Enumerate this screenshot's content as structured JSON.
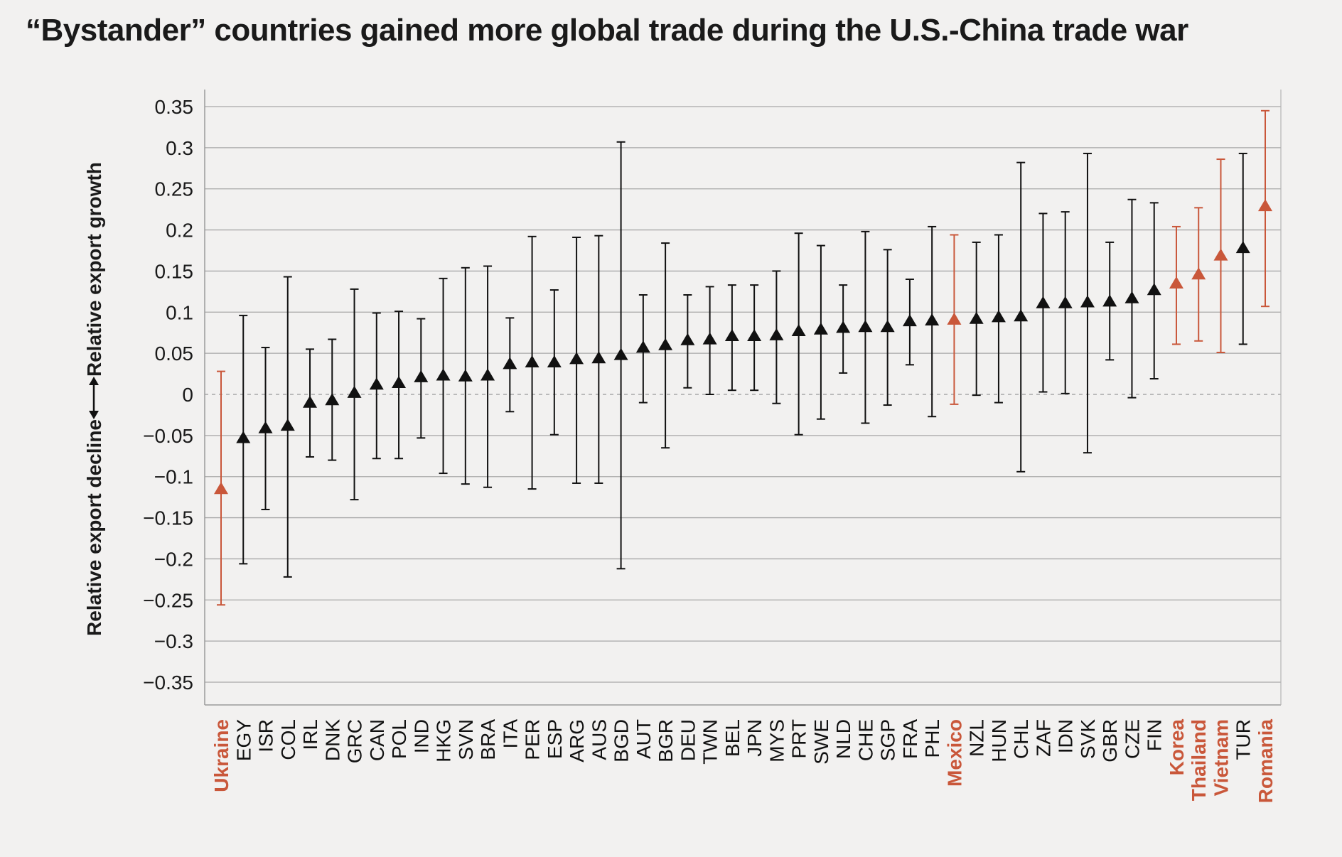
{
  "chart_data": {
    "type": "scatter",
    "title": "“Bystander” countries gained more global trade during the U.S.-China trade war",
    "ylabel_decline": "Relative export decline",
    "ylabel_growth": "Relative export growth",
    "ylim": [
      -0.35,
      0.35
    ],
    "ytick_values": [
      0.35,
      0.3,
      0.25,
      0.2,
      0.15,
      0.1,
      0.05,
      0,
      -0.05,
      -0.1,
      -0.15,
      -0.2,
      -0.25,
      -0.3,
      -0.35
    ],
    "ytick_labels": [
      "0.35",
      "0.3",
      "0.25",
      "0.2",
      "0.15",
      "0.1",
      "0.05",
      "0",
      "−0.05",
      "−0.1",
      "−0.15",
      "−0.2",
      "−0.25",
      "−0.3",
      "−0.35"
    ],
    "grid": true,
    "colors": {
      "default": "#111111",
      "highlight": "#c9573a",
      "grid": "#a8a8a8",
      "background": "#f2f1f0"
    },
    "points": [
      {
        "label": "Ukraine",
        "value": -0.116,
        "low": -0.256,
        "high": 0.028,
        "highlight": true
      },
      {
        "label": "EGY",
        "value": -0.054,
        "low": -0.206,
        "high": 0.096,
        "highlight": false
      },
      {
        "label": "ISR",
        "value": -0.042,
        "low": -0.14,
        "high": 0.057,
        "highlight": false
      },
      {
        "label": "COL",
        "value": -0.039,
        "low": -0.222,
        "high": 0.143,
        "highlight": false
      },
      {
        "label": "IRL",
        "value": -0.011,
        "low": -0.076,
        "high": 0.055,
        "highlight": false
      },
      {
        "label": "DNK",
        "value": -0.008,
        "low": -0.08,
        "high": 0.067,
        "highlight": false
      },
      {
        "label": "GRC",
        "value": 0.001,
        "low": -0.128,
        "high": 0.128,
        "highlight": false
      },
      {
        "label": "CAN",
        "value": 0.011,
        "low": -0.078,
        "high": 0.099,
        "highlight": false
      },
      {
        "label": "POL",
        "value": 0.013,
        "low": -0.078,
        "high": 0.101,
        "highlight": false
      },
      {
        "label": "IND",
        "value": 0.02,
        "low": -0.053,
        "high": 0.092,
        "highlight": false
      },
      {
        "label": "HKG",
        "value": 0.022,
        "low": -0.096,
        "high": 0.141,
        "highlight": false
      },
      {
        "label": "SVN",
        "value": 0.021,
        "low": -0.109,
        "high": 0.154,
        "highlight": false
      },
      {
        "label": "BRA",
        "value": 0.022,
        "low": -0.113,
        "high": 0.156,
        "highlight": false
      },
      {
        "label": "ITA",
        "value": 0.036,
        "low": -0.021,
        "high": 0.093,
        "highlight": false
      },
      {
        "label": "PER",
        "value": 0.038,
        "low": -0.115,
        "high": 0.192,
        "highlight": false
      },
      {
        "label": "ESP",
        "value": 0.038,
        "low": -0.049,
        "high": 0.127,
        "highlight": false
      },
      {
        "label": "ARG",
        "value": 0.042,
        "low": -0.108,
        "high": 0.191,
        "highlight": false
      },
      {
        "label": "AUS",
        "value": 0.043,
        "low": -0.108,
        "high": 0.193,
        "highlight": false
      },
      {
        "label": "BGD",
        "value": 0.047,
        "low": -0.212,
        "high": 0.307,
        "highlight": false
      },
      {
        "label": "AUT",
        "value": 0.056,
        "low": -0.01,
        "high": 0.121,
        "highlight": false
      },
      {
        "label": "BGR",
        "value": 0.059,
        "low": -0.065,
        "high": 0.184,
        "highlight": false
      },
      {
        "label": "DEU",
        "value": 0.065,
        "low": 0.008,
        "high": 0.121,
        "highlight": false
      },
      {
        "label": "TWN",
        "value": 0.066,
        "low": 0.0,
        "high": 0.131,
        "highlight": false
      },
      {
        "label": "BEL",
        "value": 0.07,
        "low": 0.005,
        "high": 0.133,
        "highlight": false
      },
      {
        "label": "JPN",
        "value": 0.07,
        "low": 0.005,
        "high": 0.133,
        "highlight": false
      },
      {
        "label": "MYS",
        "value": 0.071,
        "low": -0.011,
        "high": 0.15,
        "highlight": false
      },
      {
        "label": "PRT",
        "value": 0.076,
        "low": -0.049,
        "high": 0.196,
        "highlight": false
      },
      {
        "label": "SWE",
        "value": 0.078,
        "low": -0.03,
        "high": 0.181,
        "highlight": false
      },
      {
        "label": "NLD",
        "value": 0.08,
        "low": 0.026,
        "high": 0.133,
        "highlight": false
      },
      {
        "label": "CHE",
        "value": 0.081,
        "low": -0.035,
        "high": 0.198,
        "highlight": false
      },
      {
        "label": "SGP",
        "value": 0.081,
        "low": -0.013,
        "high": 0.176,
        "highlight": false
      },
      {
        "label": "FRA",
        "value": 0.088,
        "low": 0.036,
        "high": 0.14,
        "highlight": false
      },
      {
        "label": "PHL",
        "value": 0.089,
        "low": -0.027,
        "high": 0.204,
        "highlight": false
      },
      {
        "label": "Mexico",
        "value": 0.09,
        "low": -0.012,
        "high": 0.194,
        "highlight": true
      },
      {
        "label": "NZL",
        "value": 0.091,
        "low": -0.001,
        "high": 0.185,
        "highlight": false
      },
      {
        "label": "HUN",
        "value": 0.093,
        "low": -0.01,
        "high": 0.194,
        "highlight": false
      },
      {
        "label": "CHL",
        "value": 0.094,
        "low": -0.094,
        "high": 0.282,
        "highlight": false
      },
      {
        "label": "ZAF",
        "value": 0.11,
        "low": 0.003,
        "high": 0.22,
        "highlight": false
      },
      {
        "label": "IDN",
        "value": 0.11,
        "low": 0.001,
        "high": 0.222,
        "highlight": false
      },
      {
        "label": "SVK",
        "value": 0.111,
        "low": -0.071,
        "high": 0.293,
        "highlight": false
      },
      {
        "label": "GBR",
        "value": 0.112,
        "low": 0.042,
        "high": 0.185,
        "highlight": false
      },
      {
        "label": "CZE",
        "value": 0.116,
        "low": -0.004,
        "high": 0.237,
        "highlight": false
      },
      {
        "label": "FIN",
        "value": 0.126,
        "low": 0.019,
        "high": 0.233,
        "highlight": false
      },
      {
        "label": "Korea",
        "value": 0.134,
        "low": 0.061,
        "high": 0.204,
        "highlight": true
      },
      {
        "label": "Thailand",
        "value": 0.145,
        "low": 0.065,
        "high": 0.227,
        "highlight": true
      },
      {
        "label": "Vietnam",
        "value": 0.168,
        "low": 0.051,
        "high": 0.286,
        "highlight": true
      },
      {
        "label": "TUR",
        "value": 0.177,
        "low": 0.061,
        "high": 0.293,
        "highlight": false
      },
      {
        "label": "Romania",
        "value": 0.228,
        "low": 0.107,
        "high": 0.345,
        "highlight": true
      }
    ]
  }
}
